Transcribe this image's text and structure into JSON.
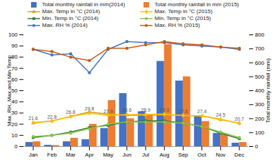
{
  "chart_data": {
    "type": "bar",
    "categories": [
      "Jan",
      "Feb",
      "Mar",
      "Apr",
      "May",
      "Jun",
      "Jul",
      "Aug",
      "Sep",
      "Oct",
      "Nov",
      "Dec"
    ],
    "y_label": "Max. RH, Max and Min Temp",
    "y2_label": "Total monthly rainfall (mm)",
    "ylim": [
      0,
      100
    ],
    "yticks": [
      0,
      10,
      20,
      30,
      40,
      50,
      60,
      70,
      80,
      90,
      100
    ],
    "y2lim": [
      0,
      800
    ],
    "y2ticks": [
      0,
      100,
      200,
      300,
      400,
      500,
      600,
      700,
      800
    ],
    "grid": false,
    "legend": "top",
    "series": [
      {
        "name": "Total monthly rainfall in mm(2014)",
        "type": "bar",
        "axis": "y2",
        "color": "#4472c4",
        "values": [
          30,
          10,
          35,
          50,
          130,
          380,
          250,
          610,
          470,
          220,
          95,
          25
        ]
      },
      {
        "name": "Total monthly rainfall in mm (2015)",
        "type": "bar",
        "axis": "y2",
        "color": "#ed7d31",
        "values": [
          35,
          8,
          60,
          160,
          330,
          200,
          230,
          730,
          500,
          180,
          85,
          30
        ]
      },
      {
        "name": "Max. Temp in °C (2014)",
        "type": "line",
        "color": "#d4a017",
        "marker": "triangle",
        "values": [
          21,
          23,
          27,
          31,
          29,
          28,
          28,
          28.5,
          28,
          27.5,
          24,
          21
        ]
      },
      {
        "name": "Max. Temp in °C (2015)",
        "type": "line",
        "color": "#ffc000",
        "marker": "diamond",
        "data_labels": true,
        "values": [
          21.6,
          22.8,
          26.8,
          29.8,
          27.9,
          28.6,
          28.9,
          29.0,
          27.8,
          27.4,
          24.5,
          20.7
        ],
        "value_labels": [
          "21.6",
          "22.8",
          "26.8",
          "29.8",
          "27.9",
          "28.6",
          "28.9",
          "29.0",
          "27.8",
          "27.4",
          "24.5",
          "20.7"
        ]
      },
      {
        "name": "Min. Temp in °C (2014)",
        "type": "line",
        "color": "#2e7d32",
        "marker": "square",
        "values": [
          8,
          10,
          13,
          17,
          19,
          22,
          23,
          23,
          21,
          18,
          12,
          7
        ]
      },
      {
        "name": "Min. Temp in °C (2015)",
        "type": "line",
        "color": "#8bc34a",
        "marker": "circle",
        "values": [
          9,
          10,
          12,
          16,
          20,
          22,
          22,
          22,
          21,
          18,
          13,
          8
        ]
      },
      {
        "name": "Max. RH % (2014)",
        "type": "line",
        "color": "#4472c4",
        "marker": "circle",
        "values": [
          87,
          82,
          83,
          66,
          87,
          94,
          93,
          93,
          91,
          90,
          89,
          87
        ]
      },
      {
        "name": "Max. RH % (2015)",
        "type": "line",
        "color": "#c55a11",
        "marker": "circle",
        "values": [
          87,
          85,
          80,
          77,
          88,
          88,
          91,
          94,
          92,
          91,
          89,
          88
        ]
      }
    ]
  }
}
